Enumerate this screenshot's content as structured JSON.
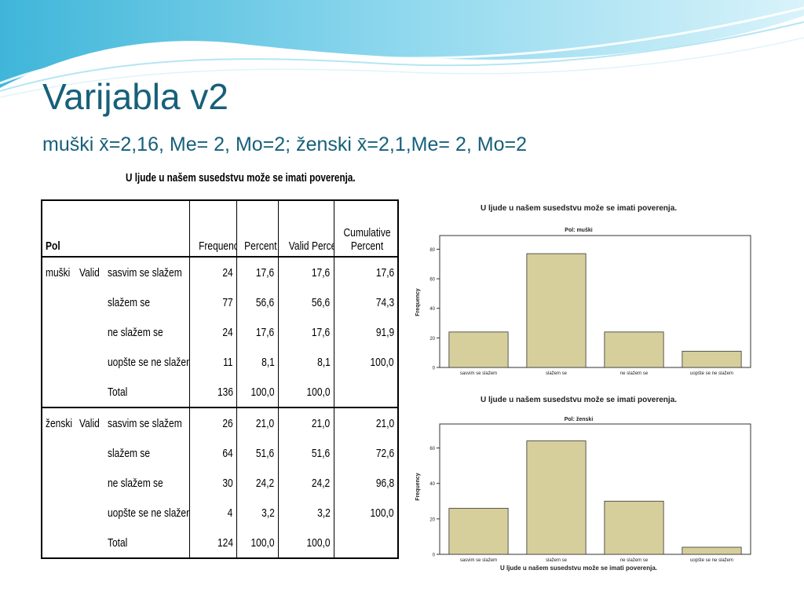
{
  "slide": {
    "title": "Varijabla v2",
    "subtitle": "muški x̄=2,16, Me= 2, Mo=2; ženski x̄=2,1,Me= 2, Mo=2"
  },
  "table": {
    "caption": "U ljude u našem susedstvu može se imati poverenja.",
    "headers": {
      "pol": "Pol",
      "frequency": "Frequency",
      "percent": "Percent",
      "valid_percent": "Valid Percent",
      "cumulative_1": "Cumulative",
      "cumulative_2": "Percent"
    },
    "groups": [
      {
        "sex": "muški",
        "valid": "Valid",
        "rows": [
          {
            "label": "sasvim se slažem",
            "freq": "24",
            "pct": "17,6",
            "valid_pct": "17,6",
            "cum": "17,6"
          },
          {
            "label": "slažem se",
            "freq": "77",
            "pct": "56,6",
            "valid_pct": "56,6",
            "cum": "74,3"
          },
          {
            "label": "ne slažem se",
            "freq": "24",
            "pct": "17,6",
            "valid_pct": "17,6",
            "cum": "91,9"
          },
          {
            "label": "uopšte se ne slažem",
            "freq": "11",
            "pct": "8,1",
            "valid_pct": "8,1",
            "cum": "100,0"
          },
          {
            "label": "Total",
            "freq": "136",
            "pct": "100,0",
            "valid_pct": "100,0",
            "cum": ""
          }
        ]
      },
      {
        "sex": "ženski",
        "valid": "Valid",
        "rows": [
          {
            "label": "sasvim se slažem",
            "freq": "26",
            "pct": "21,0",
            "valid_pct": "21,0",
            "cum": "21,0"
          },
          {
            "label": "slažem se",
            "freq": "64",
            "pct": "51,6",
            "valid_pct": "51,6",
            "cum": "72,6"
          },
          {
            "label": "ne slažem se",
            "freq": "30",
            "pct": "24,2",
            "valid_pct": "24,2",
            "cum": "96,8"
          },
          {
            "label": "uopšte se ne slažem",
            "freq": "4",
            "pct": "3,2",
            "valid_pct": "3,2",
            "cum": "100,0"
          },
          {
            "label": "Total",
            "freq": "124",
            "pct": "100,0",
            "valid_pct": "100,0",
            "cum": ""
          }
        ]
      }
    ]
  },
  "chart_data": [
    {
      "type": "bar",
      "title": "U ljude u našem susedstvu može se imati poverenja.",
      "subtitle": "Pol: muški",
      "xlabel": "",
      "ylabel": "Frequency",
      "categories": [
        "sasvim se slažem",
        "slažem se",
        "ne slažem se",
        "uopšte se ne slažem"
      ],
      "values": [
        24,
        77,
        24,
        11
      ],
      "ylim": [
        0,
        85
      ],
      "yticks": [
        0,
        20,
        40,
        60,
        80
      ],
      "bar_color": "#d6cf9c",
      "grid": false
    },
    {
      "type": "bar",
      "title": "U ljude u našem susedstvu može se imati poverenja.",
      "subtitle": "Pol: ženski",
      "xlabel": "U ljude u našem susedstvu može se imati poverenja.",
      "ylabel": "Frequency",
      "categories": [
        "sasvim se slažem",
        "slažem se",
        "ne slažem se",
        "uopšte se ne slažem"
      ],
      "values": [
        26,
        64,
        30,
        4
      ],
      "ylim": [
        0,
        70
      ],
      "yticks": [
        0,
        20,
        40,
        60
      ],
      "bar_color": "#d6cf9c",
      "grid": false
    }
  ]
}
